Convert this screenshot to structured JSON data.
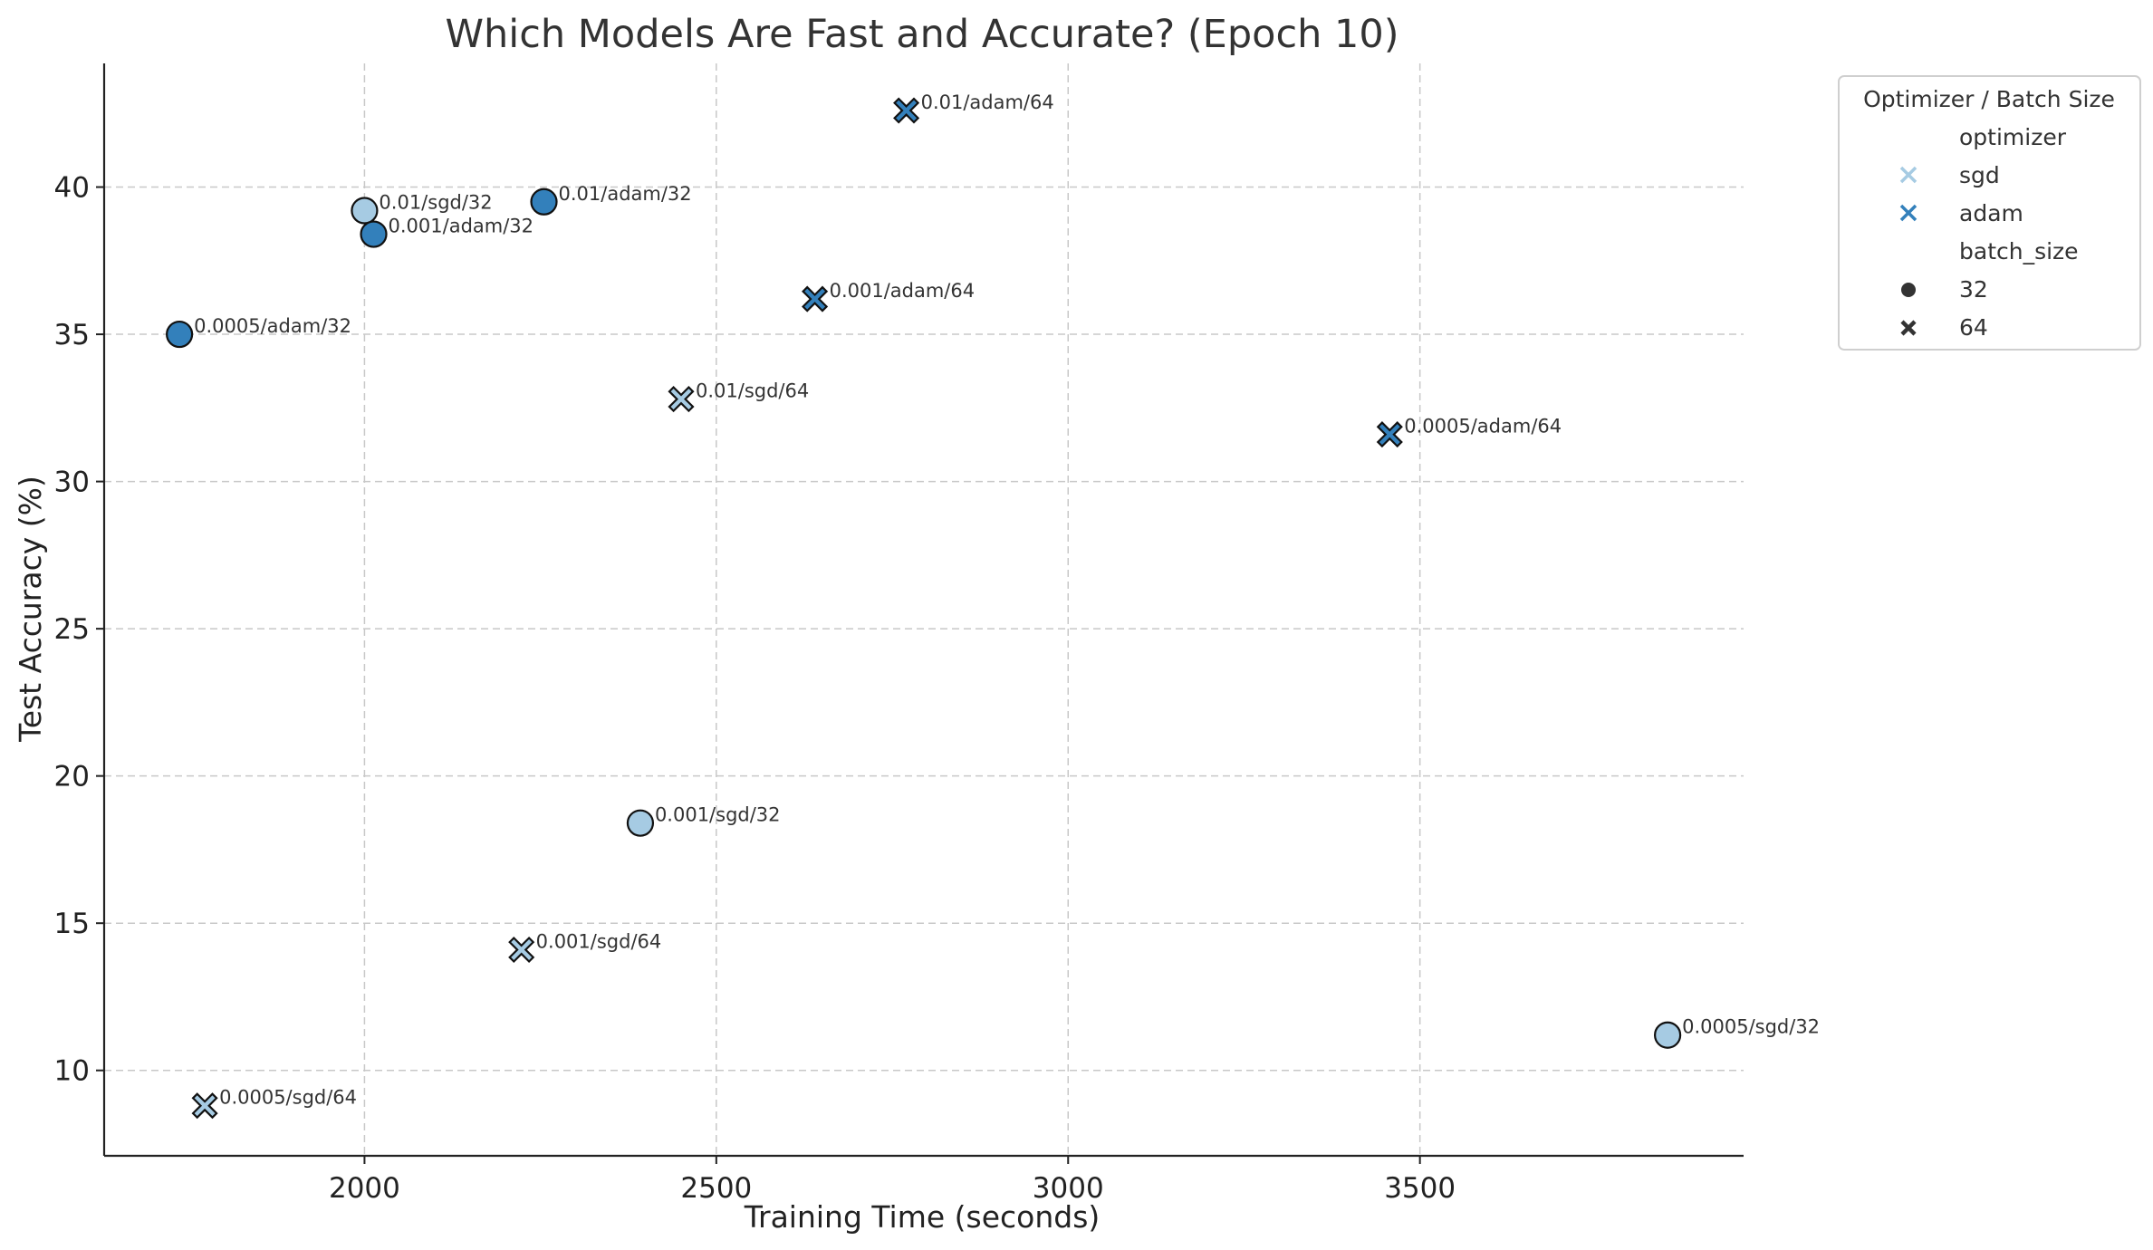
{
  "chart_data": {
    "type": "scatter",
    "title": "Which Models Are Fast and Accurate? (Epoch 10)",
    "xlabel": "Training Time (seconds)",
    "ylabel": "Test Accuracy (%)",
    "xlim": [
      1630,
      3960
    ],
    "ylim": [
      7.1,
      44.2
    ],
    "xticks": [
      2000,
      2500,
      3000,
      3500
    ],
    "yticks": [
      10,
      15,
      20,
      25,
      30,
      35,
      40
    ],
    "grid": true,
    "legend": {
      "title": "Optimizer / Batch Size",
      "placement": "outside-top-right",
      "hue_title": "optimizer",
      "hue_entries": [
        {
          "label": "sgd",
          "color": "#a6cbe3"
        },
        {
          "label": "adam",
          "color": "#3380bb"
        }
      ],
      "style_title": "batch_size",
      "style_entries": [
        {
          "label": "32",
          "marker": "circle"
        },
        {
          "label": "64",
          "marker": "x"
        }
      ]
    },
    "colors": {
      "sgd": "#a6cbe3",
      "adam": "#3380bb",
      "edge": "#111111"
    },
    "points": [
      {
        "label": "0.01/adam/64",
        "x": 2770,
        "y": 42.6,
        "optimizer": "adam",
        "batch_size": 64
      },
      {
        "label": "0.01/adam/32",
        "x": 2255,
        "y": 39.5,
        "optimizer": "adam",
        "batch_size": 32
      },
      {
        "label": "0.01/sgd/32",
        "x": 2000,
        "y": 39.2,
        "optimizer": "sgd",
        "batch_size": 32
      },
      {
        "label": "0.001/adam/32",
        "x": 2013,
        "y": 38.4,
        "optimizer": "adam",
        "batch_size": 32
      },
      {
        "label": "0.001/adam/64",
        "x": 2640,
        "y": 36.2,
        "optimizer": "adam",
        "batch_size": 64
      },
      {
        "label": "0.0005/adam/32",
        "x": 1737,
        "y": 35.0,
        "optimizer": "adam",
        "batch_size": 32
      },
      {
        "label": "0.01/sgd/64",
        "x": 2450,
        "y": 32.8,
        "optimizer": "sgd",
        "batch_size": 64
      },
      {
        "label": "0.0005/adam/64",
        "x": 3457,
        "y": 31.6,
        "optimizer": "adam",
        "batch_size": 64
      },
      {
        "label": "0.001/sgd/32",
        "x": 2392,
        "y": 18.4,
        "optimizer": "sgd",
        "batch_size": 32
      },
      {
        "label": "0.001/sgd/64",
        "x": 2223,
        "y": 14.1,
        "optimizer": "sgd",
        "batch_size": 64
      },
      {
        "label": "0.0005/sgd/32",
        "x": 3852,
        "y": 11.2,
        "optimizer": "sgd",
        "batch_size": 32
      },
      {
        "label": "0.0005/sgd/64",
        "x": 1773,
        "y": 8.8,
        "optimizer": "sgd",
        "batch_size": 64
      }
    ]
  }
}
